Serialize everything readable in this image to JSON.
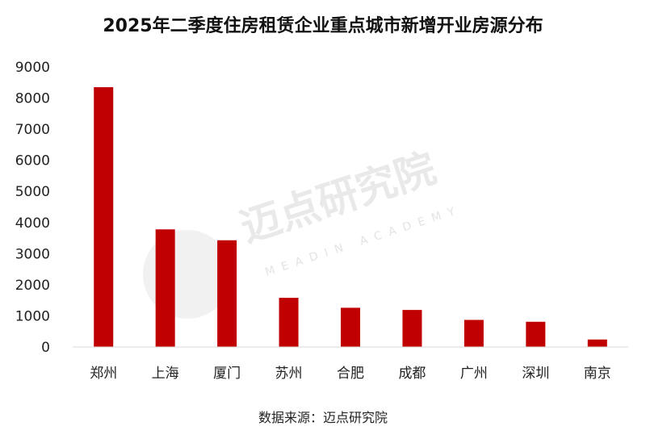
{
  "chart_data": {
    "type": "bar",
    "title": "2025年二季度住房租赁企业重点城市新增开业房源分布",
    "categories": [
      "郑州",
      "上海",
      "厦门",
      "苏州",
      "合肥",
      "成都",
      "广州",
      "深圳",
      "南京"
    ],
    "values": [
      8350,
      3780,
      3430,
      1580,
      1260,
      1190,
      870,
      810,
      240
    ],
    "ylim": [
      0,
      9000
    ],
    "yticks": [
      0,
      1000,
      2000,
      3000,
      4000,
      5000,
      6000,
      7000,
      8000,
      9000
    ],
    "xlabel": "",
    "ylabel": "",
    "grid": false,
    "legend": "none",
    "bar_color": "#c00000"
  },
  "watermark": {
    "cn": "迈点研究院",
    "en": "MEADIN ACADEMY"
  },
  "source": "数据来源：迈点研究院"
}
